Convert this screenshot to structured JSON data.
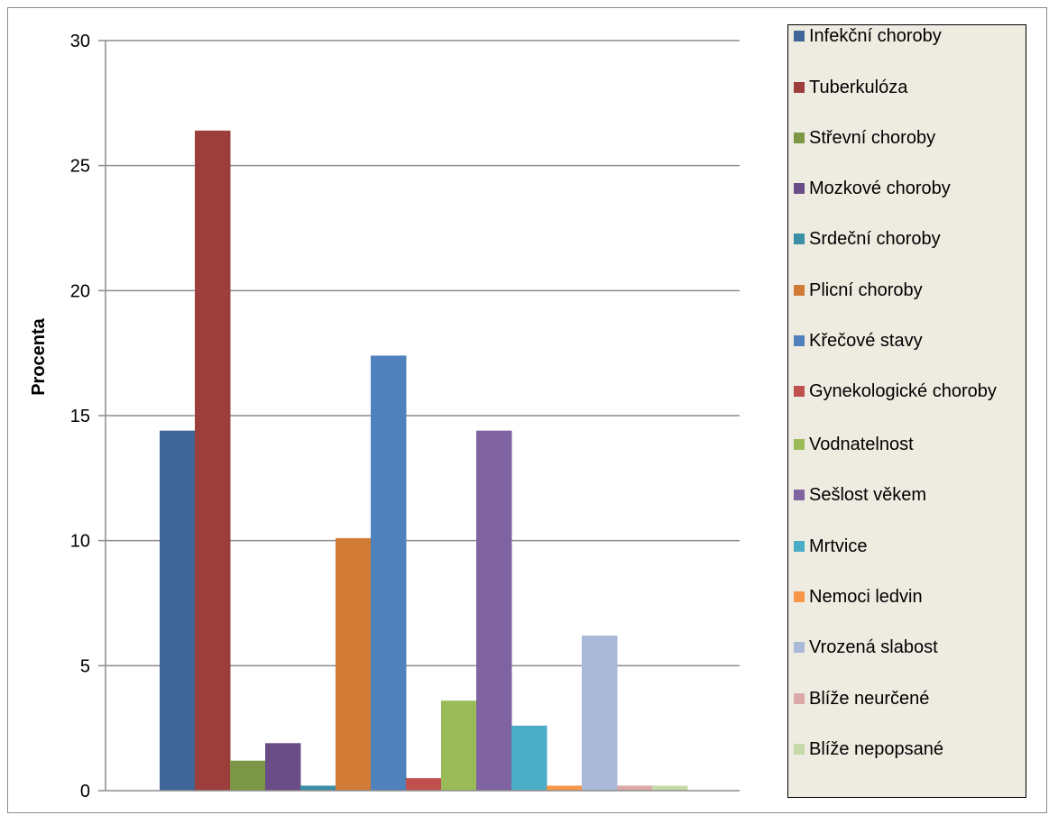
{
  "chart_data": {
    "type": "bar",
    "title": "",
    "xlabel": "",
    "ylabel": "Procenta",
    "ylim": [
      0,
      30
    ],
    "yticks": [
      "0",
      "5",
      "10",
      "15",
      "20",
      "25",
      "30"
    ],
    "grid": true,
    "legend_position": "right",
    "series": [
      {
        "name": "Infekční choroby",
        "value": 14.4,
        "color": "#3f6599"
      },
      {
        "name": "Tuberkulóza",
        "value": 26.4,
        "color": "#9b3e3c"
      },
      {
        "name": "Střevní choroby",
        "value": 1.2,
        "color": "#7b9644"
      },
      {
        "name": "Mozkové choroby",
        "value": 1.9,
        "color": "#6a4c86"
      },
      {
        "name": "Srdeční choroby",
        "value": 0.2,
        "color": "#3a8fa6"
      },
      {
        "name": "Plicní choroby",
        "value": 10.1,
        "color": "#d27b37"
      },
      {
        "name": "Křečové stavy",
        "value": 17.4,
        "color": "#4f81bd"
      },
      {
        "name": "Gynekologické choroby",
        "value": 0.5,
        "color": "#c0504d"
      },
      {
        "name": "Vodnatelnost",
        "value": 3.6,
        "color": "#9bbb59"
      },
      {
        "name": "Sešlost věkem",
        "value": 14.4,
        "color": "#8064a2"
      },
      {
        "name": "Mrtvice",
        "value": 2.6,
        "color": "#4bacc6"
      },
      {
        "name": "Nemoci ledvin",
        "value": 0.2,
        "color": "#f79646"
      },
      {
        "name": "Vrozená slabost",
        "value": 6.2,
        "color": "#aab9d8"
      },
      {
        "name": "Blíže neurčené",
        "value": 0.2,
        "color": "#dba9a8"
      },
      {
        "name": "Blíže nepopsané",
        "value": 0.2,
        "color": "#c6d9a8"
      }
    ]
  }
}
